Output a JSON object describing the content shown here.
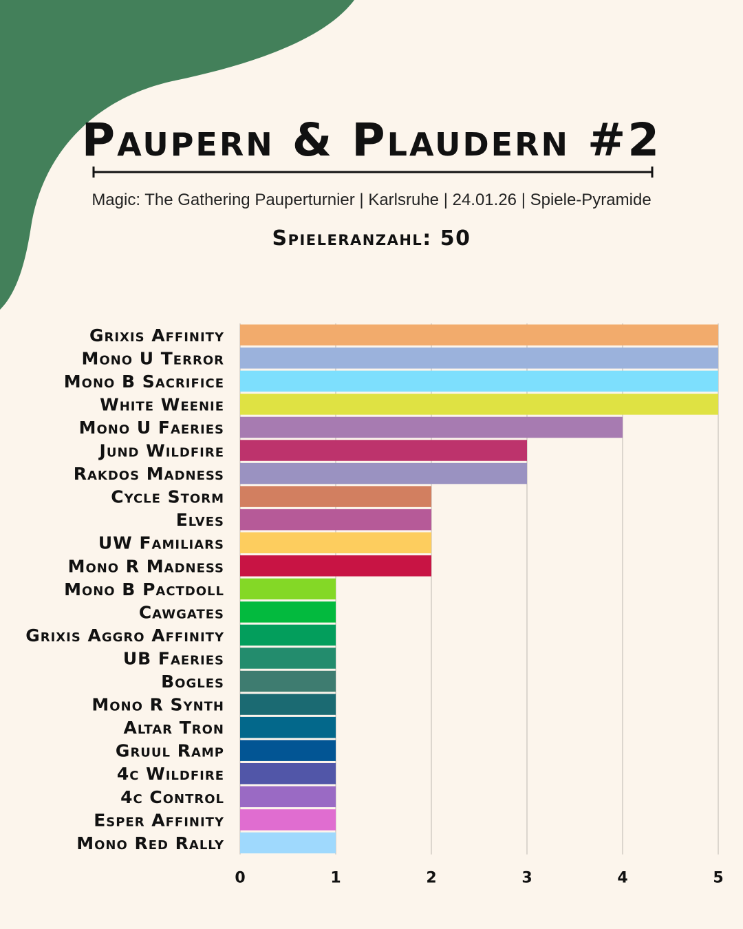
{
  "header": {
    "title": "Paupern & Plaudern #2",
    "subtitle": "Magic: The Gathering Pauperturnier | Karlsruhe | 24.01.26 | Spiele-Pyramide",
    "players": "Spieleranzahl: 50"
  },
  "colors": {
    "background": "#fcf5ec",
    "accent_green": "#43805a",
    "grid": "#d2cbc4"
  },
  "chart_data": {
    "type": "bar",
    "orientation": "horizontal",
    "title": "",
    "xlabel": "",
    "ylabel": "",
    "xlim": [
      0,
      5
    ],
    "ticks": [
      0,
      1,
      2,
      3,
      4,
      5
    ],
    "grid": true,
    "legend": "none",
    "categories": [
      "Grixis Affinity",
      "Mono U Terror",
      "Mono B Sacrifice",
      "White Weenie",
      "Mono U Faeries",
      "Jund Wildfire",
      "Rakdos Madness",
      "Cycle Storm",
      "Elves",
      "UW Familiars",
      "Mono R Madness",
      "Mono B Pactdoll",
      "Cawgates",
      "Grixis Aggro Affinity",
      "UB Faeries",
      "Bogles",
      "Mono R Synth",
      "Altar Tron",
      "Gruul Ramp",
      "4c Wildfire",
      "4c Control",
      "Esper Affinity",
      "Mono Red Rally"
    ],
    "values": [
      5,
      5,
      5,
      5,
      4,
      3,
      3,
      2,
      2,
      2,
      2,
      1,
      1,
      1,
      1,
      1,
      1,
      1,
      1,
      1,
      1,
      1,
      1
    ],
    "bar_colors": [
      "#f2ab6c",
      "#9bb2dc",
      "#7ddffd",
      "#dfe243",
      "#a77bb1",
      "#bd336c",
      "#9a92c1",
      "#d27f60",
      "#b65a98",
      "#fdcd5e",
      "#c81444",
      "#84d826",
      "#03ba3e",
      "#039e5c",
      "#238c6d",
      "#3e7c70",
      "#1b6a72",
      "#03688b",
      "#025594",
      "#5156a8",
      "#9a6ac4",
      "#e06dd0",
      "#9fd9fd"
    ]
  }
}
